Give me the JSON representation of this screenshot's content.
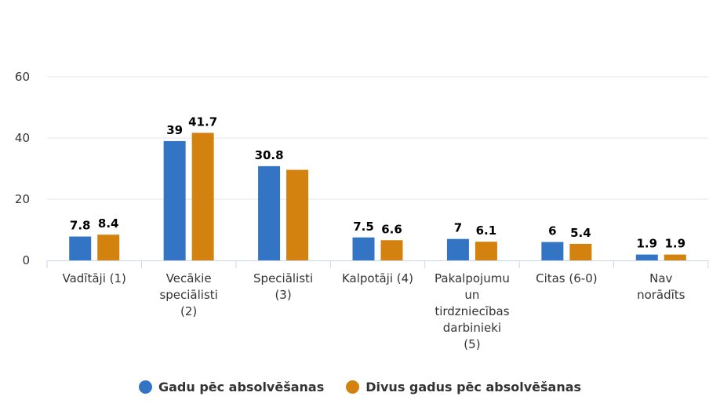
{
  "chart_data": {
    "type": "bar",
    "title": "",
    "xlabel": "",
    "ylabel": "",
    "ylim": [
      0,
      60
    ],
    "yticks": [
      0,
      20,
      40,
      60
    ],
    "grid": true,
    "legend_position": "bottom",
    "categories": [
      [
        "Vadītāji (1)"
      ],
      [
        "Vecākie",
        "speciālisti",
        "(2)"
      ],
      [
        "Speciālisti",
        "(3)"
      ],
      [
        "Kalpotāji (4)"
      ],
      [
        "Pakalpojumu",
        "un",
        "tirdzniecības",
        "darbinieki",
        "(5)"
      ],
      [
        "Citas (6-0)"
      ],
      [
        "Nav",
        "norādīts"
      ]
    ],
    "series": [
      {
        "name": "Gadu pēc absolvēšanas",
        "color": "#3474c4",
        "values": [
          7.8,
          39,
          30.8,
          7.5,
          7,
          6,
          1.9
        ],
        "labels": [
          "7.8",
          "39",
          "30.8",
          "7.5",
          "7",
          "6",
          "1.9"
        ]
      },
      {
        "name": "Divus gadus pēc absolvēšanas",
        "color": "#d4820f",
        "values": [
          8.4,
          41.7,
          29.6,
          6.6,
          6.1,
          5.4,
          1.9
        ],
        "labels": [
          "8.4",
          "41.7",
          null,
          "6.6",
          "6.1",
          "5.4",
          "1.9"
        ]
      }
    ]
  }
}
